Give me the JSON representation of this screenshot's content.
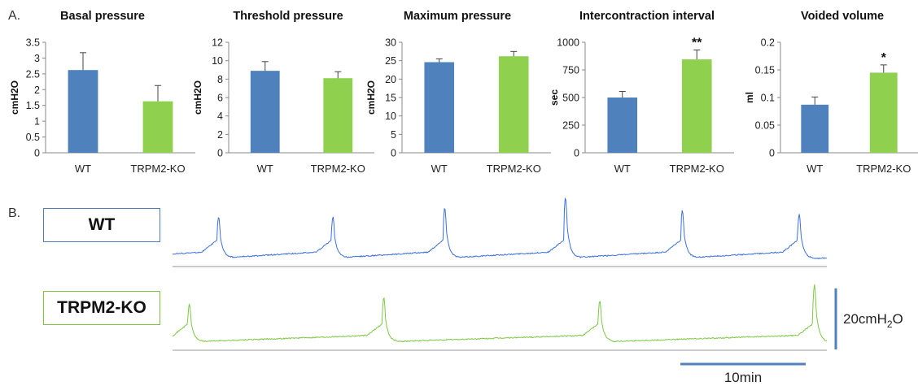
{
  "panel_labels": {
    "a": "A.",
    "b": "B."
  },
  "colors": {
    "wt": "#4f81bd",
    "ko": "#8fd14f",
    "wt_trace": "#3b6fe0",
    "ko_trace": "#7cc843",
    "scale_bar": "#4f81bd"
  },
  "chart_data": [
    {
      "type": "bar",
      "title": "Basal pressure",
      "ylabel": "cmH2O",
      "categories": [
        "WT",
        "TRPM2-KO"
      ],
      "values": [
        2.62,
        1.63
      ],
      "errors": [
        0.55,
        0.5
      ],
      "significance": [
        "",
        ""
      ],
      "ylim": [
        0,
        3.5
      ],
      "yticks": [
        0,
        0.5,
        1,
        1.5,
        2,
        2.5,
        3,
        3.5
      ],
      "ytick_labels": [
        "0",
        "0.5",
        "1",
        "1.5",
        "2",
        "2.5",
        "3",
        "3.5"
      ]
    },
    {
      "type": "bar",
      "title": "Threshold pressure",
      "ylabel": "cmH2O",
      "categories": [
        "WT",
        "TRPM2-KO"
      ],
      "values": [
        8.9,
        8.1
      ],
      "errors": [
        1.0,
        0.7
      ],
      "significance": [
        "",
        ""
      ],
      "ylim": [
        0,
        12
      ],
      "yticks": [
        0,
        2,
        4,
        6,
        8,
        10,
        12
      ],
      "ytick_labels": [
        "0",
        "2",
        "4",
        "6",
        "8",
        "10",
        "12"
      ]
    },
    {
      "type": "bar",
      "title": "Maximum pressure",
      "ylabel": "cmH2O",
      "categories": [
        "WT",
        "TRPM2-KO"
      ],
      "values": [
        24.6,
        26.2
      ],
      "errors": [
        0.9,
        1.3
      ],
      "significance": [
        "",
        ""
      ],
      "ylim": [
        0,
        30
      ],
      "yticks": [
        0,
        5,
        10,
        15,
        20,
        25,
        30
      ],
      "ytick_labels": [
        "0",
        "5",
        "10",
        "15",
        "20",
        "25",
        "30"
      ]
    },
    {
      "type": "bar",
      "title": "Intercontraction interval",
      "ylabel": "sec",
      "categories": [
        "WT",
        "TRPM2-KO"
      ],
      "values": [
        500,
        845
      ],
      "errors": [
        55,
        85
      ],
      "significance": [
        "",
        "**"
      ],
      "ylim": [
        0,
        1000
      ],
      "yticks": [
        0,
        250,
        500,
        750,
        1000
      ],
      "ytick_labels": [
        "0",
        "250",
        "500",
        "750",
        "1000"
      ]
    },
    {
      "type": "bar",
      "title": "Voided volume",
      "ylabel": "ml",
      "categories": [
        "WT",
        "TRPM2-KO"
      ],
      "values": [
        0.087,
        0.145
      ],
      "errors": [
        0.014,
        0.014
      ],
      "significance": [
        "",
        "*"
      ],
      "ylim": [
        0,
        0.2
      ],
      "yticks": [
        0,
        0.05,
        0.1,
        0.15,
        0.2
      ],
      "ytick_labels": [
        "0",
        "0.05",
        "0.1",
        "0.15",
        "0.2"
      ]
    }
  ],
  "traces": {
    "wt": {
      "label": "WT",
      "peak_minutes": [
        3.5,
        12.5,
        21.3,
        30.8,
        40.0,
        49.2
      ],
      "peak_heights_cmH2O": [
        13,
        13,
        16,
        19,
        15,
        14
      ],
      "duration_min": 51.5
    },
    "ko": {
      "label": "TRPM2-KO",
      "peak_minutes": [
        1.2,
        16.5,
        33.5,
        50.4
      ],
      "peak_heights_cmH2O": [
        12,
        14,
        13,
        18
      ],
      "duration_min": 51.5
    }
  },
  "scale_bars": {
    "pressure_label": "20cmH",
    "pressure_label_sub": "2",
    "pressure_label_tail": "O",
    "pressure_value_cmH2O": 20,
    "time_label": "10min",
    "time_value_min": 10
  }
}
